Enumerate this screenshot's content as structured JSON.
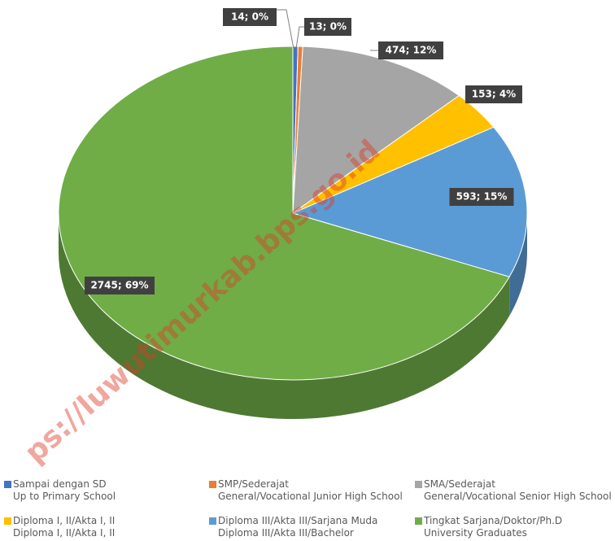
{
  "chart_data": {
    "type": "pie",
    "categories": [
      "Sampai dengan SD\nUp to Primary School",
      "SMP/Sederajat\nGeneral/Vocational Junior High School",
      "SMA/Sederajat\nGeneral/Vocational Senior High School",
      "Diploma I, II/Akta I, II\nDiploma I, II/Akta I, II",
      "Diploma III/Akta III/Sarjana Muda\nDiploma III/Akta III/Bachelor",
      "Tingkat Sarjana/Doktor/Ph.D\nUniversity Graduates"
    ],
    "values": [
      14,
      13,
      474,
      153,
      593,
      2745
    ],
    "value_labels": [
      "14; 0%",
      "13; 0%",
      "474; 12%",
      "153; 4%",
      "593; 15%",
      "2745; 69%"
    ],
    "colors": [
      "#4472c4",
      "#ed7d31",
      "#a5a5a5",
      "#ffc000",
      "#5b9bd5",
      "#70ad47"
    ],
    "legend": "bottom",
    "watermark": "ps://luwutimurkab.bps.go.id"
  }
}
